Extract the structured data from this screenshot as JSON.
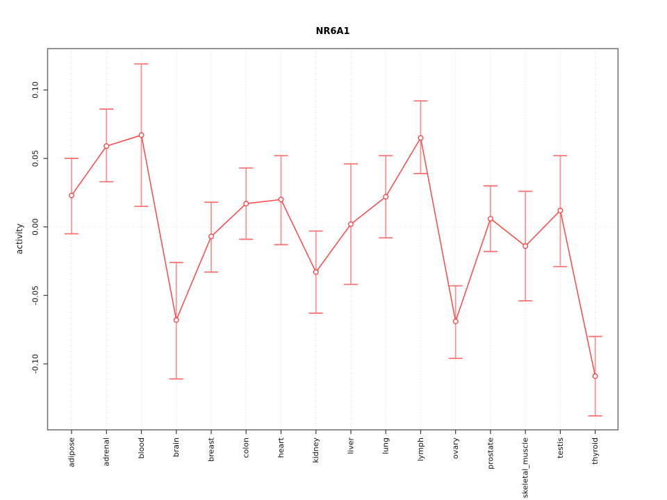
{
  "figure": {
    "background": "#ffffff"
  },
  "chart_data": {
    "type": "line",
    "title": "NR6A1",
    "xlabel": "",
    "ylabel": "activity",
    "legend": "none",
    "grid": "vertical dotted gridline per category; dotted horizontal line at y=0",
    "categories": [
      "adipose",
      "adrenal",
      "blood",
      "brain",
      "breast",
      "colon",
      "heart",
      "kidney",
      "liver",
      "lung",
      "lymph",
      "ovary",
      "prostate",
      "skeletal_muscle",
      "testis",
      "thyroid"
    ],
    "series": [
      {
        "name": "activity",
        "values": [
          0.023,
          0.059,
          0.067,
          -0.068,
          -0.007,
          0.017,
          0.02,
          -0.033,
          0.002,
          0.022,
          0.065,
          -0.069,
          0.006,
          -0.014,
          0.012,
          -0.109
        ],
        "error_low": [
          -0.005,
          0.033,
          0.015,
          -0.111,
          -0.033,
          -0.009,
          -0.013,
          -0.063,
          -0.042,
          -0.008,
          0.039,
          -0.096,
          -0.018,
          -0.054,
          -0.029,
          -0.138
        ],
        "error_high": [
          0.05,
          0.086,
          0.119,
          -0.026,
          0.018,
          0.043,
          0.052,
          -0.003,
          0.046,
          0.052,
          0.092,
          -0.043,
          0.03,
          0.026,
          0.052,
          -0.08
        ]
      }
    ],
    "yticks": [
      -0.1,
      -0.05,
      0.0,
      0.05,
      0.1
    ],
    "ytick_labels": [
      "-0.10",
      "-0.05",
      "0.00",
      "0.05",
      "0.10"
    ],
    "ylim": [
      -0.1482,
      0.1302
    ],
    "colors": {
      "line": "#ff4545",
      "point_stroke": "#ff3d3d",
      "point_fill": "#ffffff",
      "errorbar": "#ff8e8e",
      "errorbar_cap": "#ff6b6b",
      "gridline": "#d8d8d8",
      "zero_line": "#d8d8d8",
      "box": "#6e6e6e",
      "tick": "#3a3a3a",
      "tick_label": "#111111",
      "title": "#000000"
    }
  }
}
